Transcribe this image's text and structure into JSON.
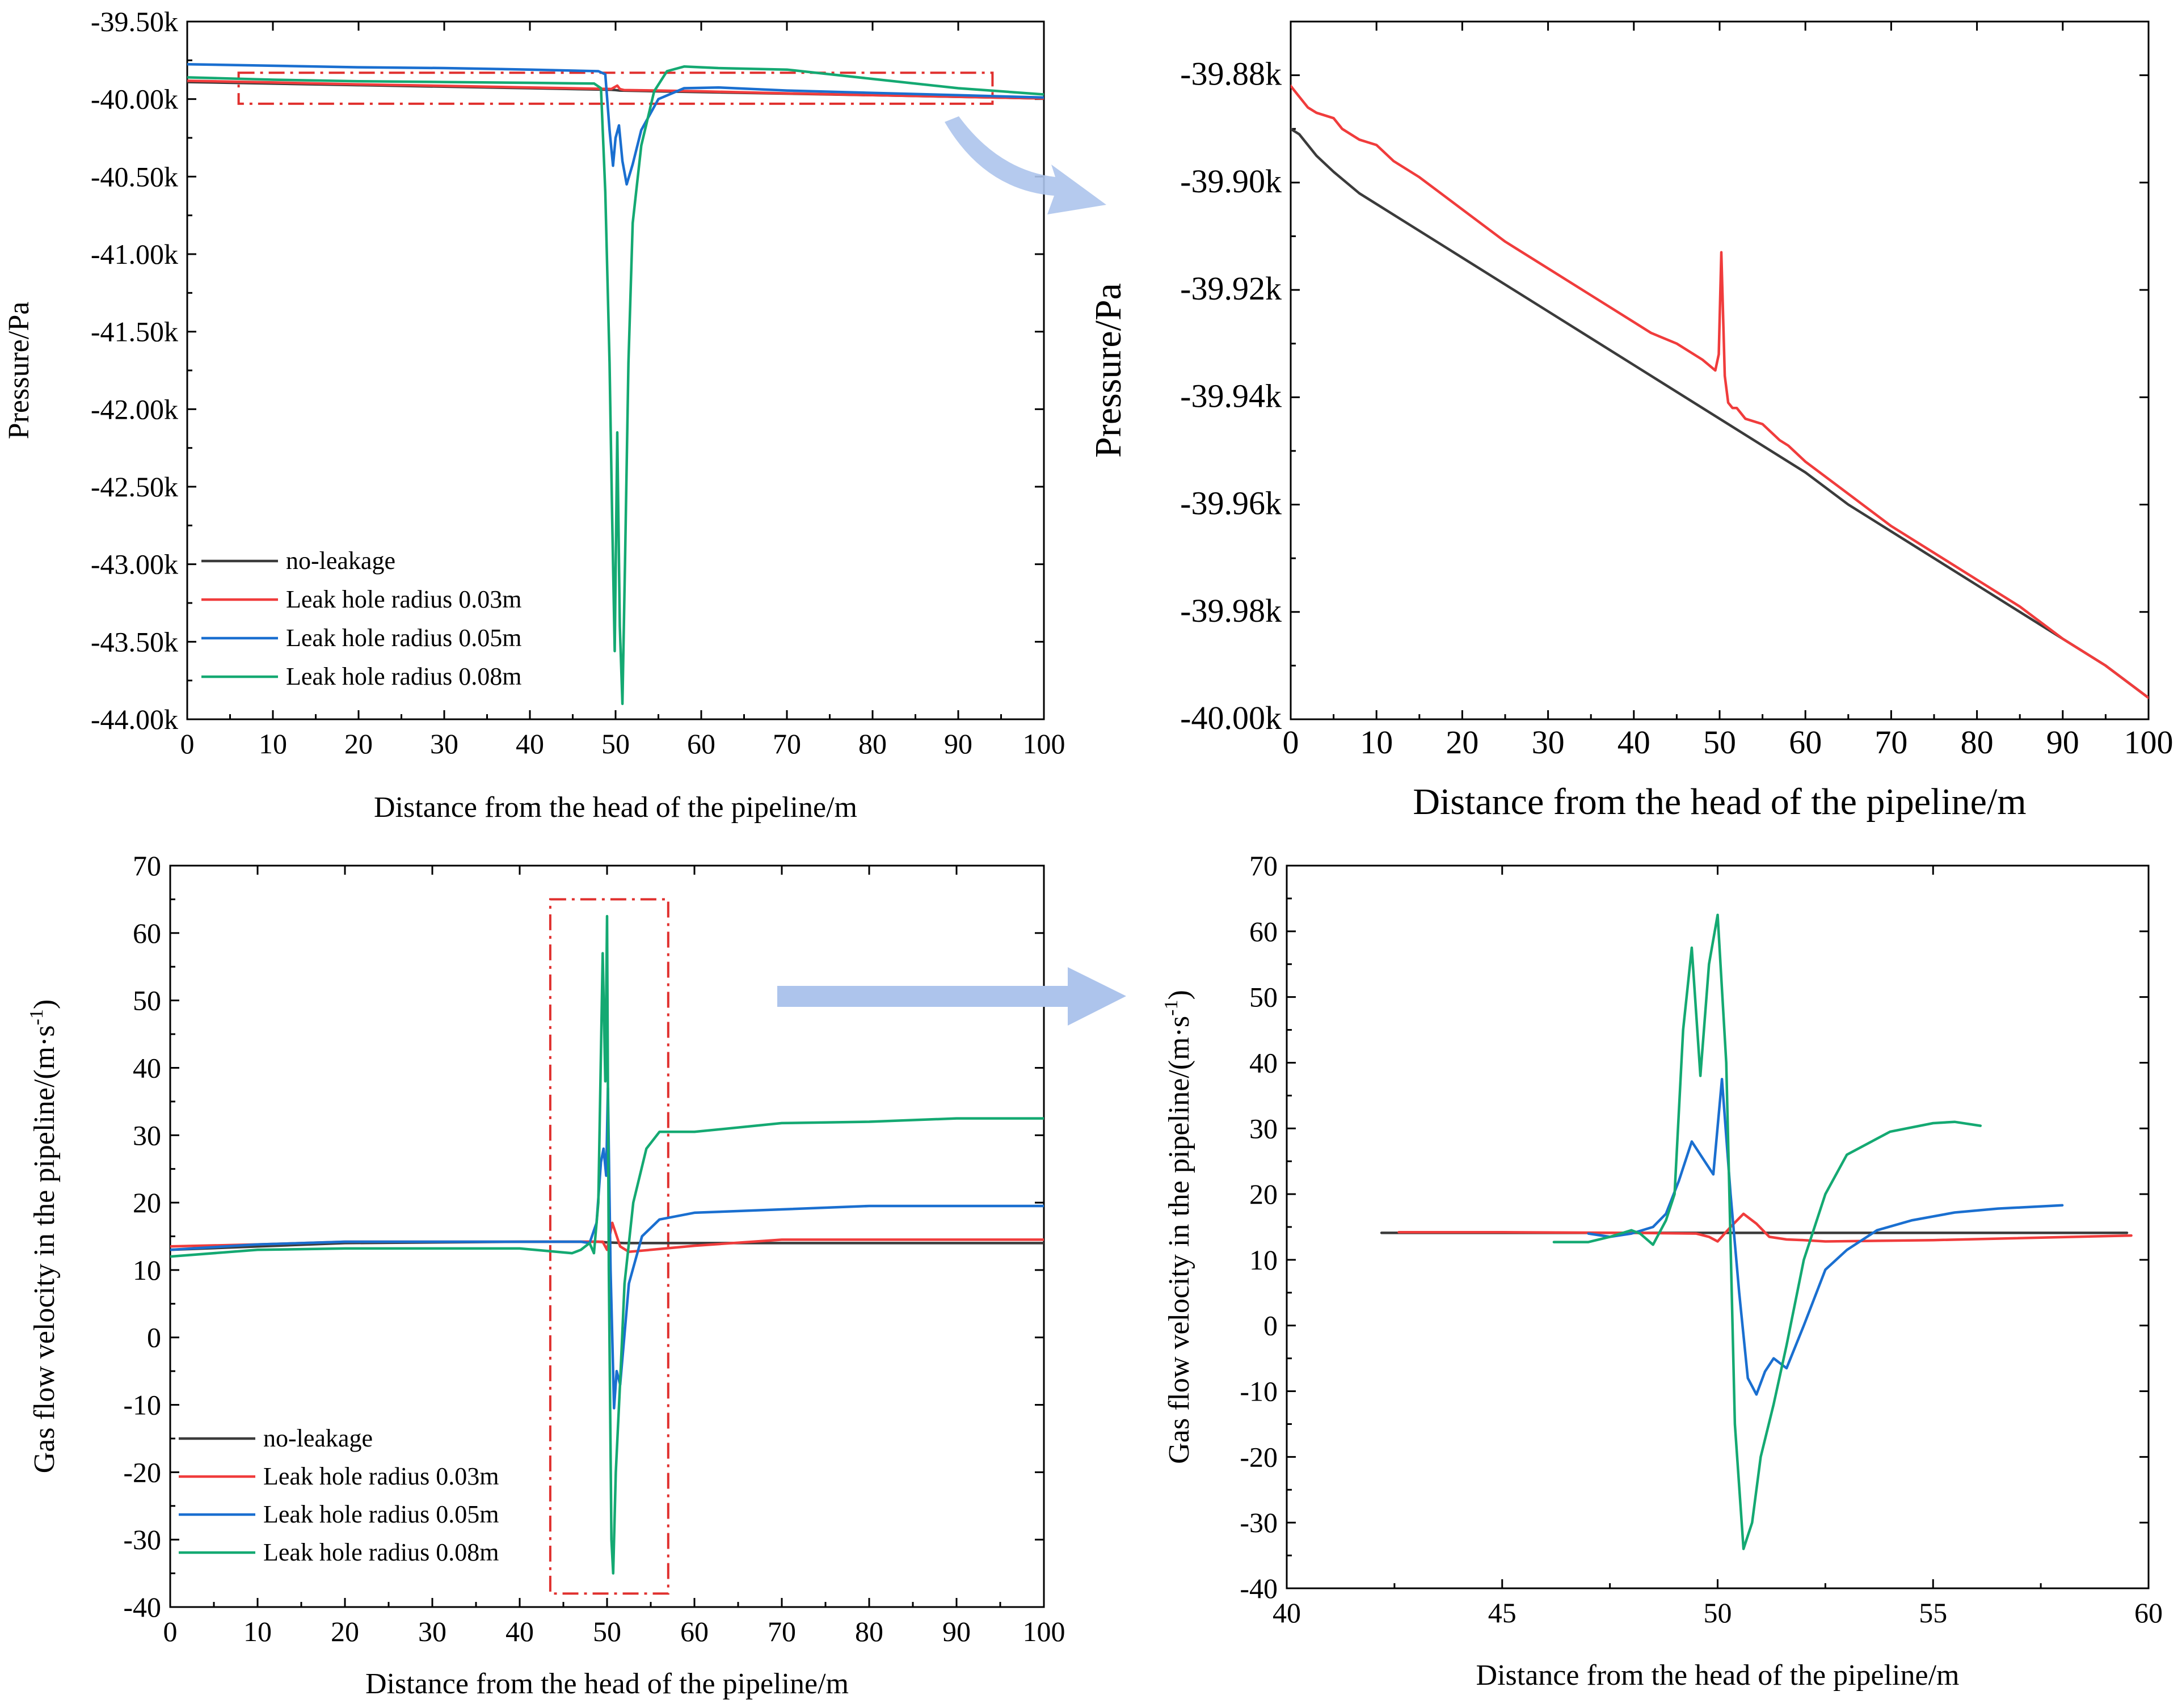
{
  "figure": {
    "colors": {
      "no_leakage": "#3b3b3b",
      "r003": "#f03c3c",
      "r005": "#1a6fd0",
      "r008": "#14a972",
      "highlight_box": "#e0302e",
      "arrow": "#adc4ec"
    }
  },
  "chart_data": [
    {
      "id": "top-left",
      "type": "line",
      "title": "",
      "xlabel": "Distance from the head of the pipeline/m",
      "ylabel": "Pressure/Pa",
      "xlim": [
        0,
        100
      ],
      "ylim": [
        -44000,
        -39500
      ],
      "xticks": [
        0,
        10,
        20,
        30,
        40,
        50,
        60,
        70,
        80,
        90,
        100
      ],
      "xtick_labels": [
        "0",
        "10",
        "20",
        "30",
        "40",
        "50",
        "60",
        "70",
        "80",
        "90",
        "100"
      ],
      "yticks": [
        -44000,
        -43500,
        -43000,
        -42500,
        -42000,
        -41500,
        -41000,
        -40500,
        -40000,
        -39500
      ],
      "ytick_labels": [
        "-44.00k",
        "-43.50k",
        "-43.00k",
        "-42.50k",
        "-42.00k",
        "-41.50k",
        "-41.00k",
        "-40.50k",
        "-40.00k",
        "-39.50k"
      ],
      "legend_position": "bottom-left",
      "highlight_box": {
        "x": [
          6,
          94
        ],
        "y": [
          -40030,
          -39830
        ]
      },
      "series": [
        {
          "key": "no_leakage",
          "name": "no-leakage",
          "x": [
            0,
            20,
            40,
            49.5,
            50,
            50.5,
            60,
            80,
            100
          ],
          "y": [
            -39890,
            -39910,
            -39930,
            -39940,
            -39942,
            -39945,
            -39955,
            -39975,
            -39996
          ]
        },
        {
          "key": "r003",
          "name": "Leak hole radius 0.03m",
          "x": [
            0,
            10,
            20,
            30,
            40,
            49.5,
            50.2,
            50.5,
            51,
            55,
            60,
            70,
            80,
            90,
            100
          ],
          "y": [
            -39882,
            -39893,
            -39905,
            -39915,
            -39925,
            -39935,
            -39913,
            -39935,
            -39942,
            -39945,
            -39950,
            -39963,
            -39975,
            -39985,
            -39996
          ]
        },
        {
          "key": "r005",
          "name": "Leak hole radius 0.05m",
          "x": [
            0,
            10,
            20,
            30,
            40,
            48,
            48.8,
            49.3,
            49.7,
            50,
            50.4,
            50.8,
            51.3,
            52,
            53,
            55,
            58,
            62,
            70,
            80,
            90,
            100
          ],
          "y": [
            -39775,
            -39785,
            -39795,
            -39800,
            -39810,
            -39820,
            -39840,
            -40200,
            -40430,
            -40250,
            -40170,
            -40400,
            -40550,
            -40420,
            -40200,
            -40000,
            -39930,
            -39925,
            -39945,
            -39960,
            -39975,
            -39990
          ]
        },
        {
          "key": "r008",
          "name": "Leak hole radius 0.08m",
          "x": [
            0,
            10,
            20,
            30,
            40,
            47.5,
            48.3,
            48.8,
            49.3,
            49.6,
            49.9,
            50.2,
            50.5,
            50.8,
            51.1,
            51.5,
            52,
            53,
            54.5,
            56,
            58,
            62,
            70,
            80,
            90,
            100
          ],
          "y": [
            -39860,
            -39875,
            -39885,
            -39890,
            -39895,
            -39900,
            -39930,
            -40600,
            -41700,
            -42700,
            -43560,
            -42150,
            -43400,
            -43900,
            -43000,
            -41700,
            -40800,
            -40300,
            -39950,
            -39820,
            -39790,
            -39800,
            -39810,
            -39870,
            -39930,
            -39970
          ]
        }
      ]
    },
    {
      "id": "top-right",
      "type": "line",
      "title": "",
      "xlabel": "Distance from the head of the pipeline/m",
      "ylabel": "Pressure/Pa",
      "xlim": [
        0,
        100
      ],
      "ylim": [
        -40000,
        -39870
      ],
      "xticks": [
        0,
        10,
        20,
        30,
        40,
        50,
        60,
        70,
        80,
        90,
        100
      ],
      "xtick_labels": [
        "0",
        "10",
        "20",
        "30",
        "40",
        "50",
        "60",
        "70",
        "80",
        "90",
        "100"
      ],
      "yticks": [
        -40000,
        -39980,
        -39960,
        -39940,
        -39920,
        -39900,
        -39880
      ],
      "ytick_labels": [
        "-40.00k",
        "-39.98k",
        "-39.96k",
        "-39.94k",
        "-39.92k",
        "-39.90k",
        "-39.88k"
      ],
      "series": [
        {
          "key": "no_leakage",
          "x": [
            0,
            1,
            3,
            5,
            8,
            10,
            20,
            30,
            40,
            50,
            60,
            65,
            70,
            80,
            90,
            95,
            100
          ],
          "y": [
            -39890,
            -39891,
            -39895,
            -39898,
            -39902,
            -39904,
            -39914,
            -39924,
            -39934,
            -39944,
            -39954,
            -39960,
            -39965,
            -39975,
            -39985,
            -39990,
            -39996
          ]
        },
        {
          "key": "r003",
          "x": [
            0,
            1,
            2,
            3,
            5,
            6,
            8,
            10,
            12,
            15,
            20,
            25,
            30,
            35,
            40,
            42,
            45,
            48,
            49.5,
            49.9,
            50.2,
            50.6,
            51,
            51.5,
            52,
            53,
            55,
            57,
            58,
            60,
            65,
            70,
            75,
            80,
            85,
            90,
            95,
            100
          ],
          "y": [
            -39882,
            -39884,
            -39886,
            -39887,
            -39888,
            -39890,
            -39892,
            -39893,
            -39896,
            -39899,
            -39905,
            -39911,
            -39916,
            -39921,
            -39926,
            -39928,
            -39930,
            -39933,
            -39935,
            -39932,
            -39913,
            -39936,
            -39941,
            -39942,
            -39942,
            -39944,
            -39945,
            -39948,
            -39949,
            -39952,
            -39958,
            -39964,
            -39969,
            -39974,
            -39979,
            -39985,
            -39990,
            -39996
          ]
        }
      ]
    },
    {
      "id": "bottom-left",
      "type": "line",
      "title": "",
      "xlabel": "Distance from the head of the pipeline/m",
      "ylabel": "Gas flow velocity in the pipeline/(m·s",
      "ylabel_superscript": "-1",
      "ylabel_suffix": ")",
      "xlim": [
        0,
        100
      ],
      "ylim": [
        -40,
        70
      ],
      "xticks": [
        0,
        10,
        20,
        30,
        40,
        50,
        60,
        70,
        80,
        90,
        100
      ],
      "xtick_labels": [
        "0",
        "10",
        "20",
        "30",
        "40",
        "50",
        "60",
        "70",
        "80",
        "90",
        "100"
      ],
      "yticks": [
        -40,
        -30,
        -20,
        -10,
        0,
        10,
        20,
        30,
        40,
        50,
        60,
        70
      ],
      "ytick_labels": [
        "-40",
        "-30",
        "-20",
        "-10",
        "0",
        "10",
        "20",
        "30",
        "40",
        "50",
        "60",
        "70"
      ],
      "legend_position": "bottom-left",
      "highlight_box": {
        "x": [
          43.5,
          57
        ],
        "y": [
          -38,
          65
        ]
      },
      "series": [
        {
          "key": "no_leakage",
          "name": "no-leakage",
          "x": [
            0,
            20,
            40,
            49,
            50,
            52,
            60,
            100
          ],
          "y": [
            13,
            14,
            14.2,
            14.2,
            14.1,
            14,
            14,
            14
          ]
        },
        {
          "key": "r003",
          "name": "Leak hole radius 0.03m",
          "x": [
            0,
            10,
            20,
            40,
            49.5,
            50,
            50.6,
            51.5,
            52.5,
            55,
            60,
            70,
            80,
            100
          ],
          "y": [
            13.5,
            13.8,
            14.2,
            14.2,
            14.2,
            13,
            17,
            13.5,
            12.7,
            13,
            13.6,
            14.5,
            14.5,
            14.5
          ]
        },
        {
          "key": "r005",
          "name": "Leak hole radius 0.05m",
          "x": [
            0,
            10,
            20,
            40,
            47,
            48,
            48.8,
            49.3,
            49.6,
            49.9,
            50.1,
            50.4,
            50.8,
            51.1,
            51.5,
            52.5,
            54,
            56,
            60,
            70,
            80,
            90,
            100
          ],
          "y": [
            13,
            13.8,
            14.2,
            14.2,
            14.2,
            14,
            17,
            26,
            28,
            24,
            37,
            10,
            -10.5,
            -5,
            -7,
            8,
            15,
            17.5,
            18.5,
            19,
            19.5,
            19.5,
            19.5
          ]
        },
        {
          "key": "r008",
          "name": "Leak hole radius 0.08m",
          "x": [
            0,
            10,
            20,
            30,
            40,
            46,
            47,
            48,
            48.5,
            49,
            49.5,
            49.8,
            50,
            50.2,
            50.5,
            50.7,
            51,
            51.5,
            52,
            53,
            54.5,
            56,
            60,
            70,
            80,
            90,
            100
          ],
          "y": [
            12,
            13,
            13.2,
            13.2,
            13.2,
            12.5,
            13,
            14,
            12.5,
            20,
            57,
            38,
            62.5,
            10,
            -30,
            -35,
            -20,
            -6.5,
            8,
            20,
            28,
            30.5,
            30.5,
            31.8,
            32,
            32.5,
            32.5
          ]
        }
      ]
    },
    {
      "id": "bottom-right",
      "type": "line",
      "title": "",
      "xlabel": "Distance from the head of the pipeline/m",
      "ylabel": "Gas flow velocity in the pipeline/(m·s",
      "ylabel_superscript": "-1",
      "ylabel_suffix": ")",
      "xlim": [
        40,
        60
      ],
      "ylim": [
        -40,
        70
      ],
      "xticks": [
        40,
        45,
        50,
        55,
        60
      ],
      "xtick_labels": [
        "40",
        "45",
        "50",
        "55",
        "60"
      ],
      "yticks": [
        -40,
        -30,
        -20,
        -10,
        0,
        10,
        20,
        30,
        40,
        50,
        60,
        70
      ],
      "ytick_labels": [
        "-40",
        "-30",
        "-20",
        "-10",
        "0",
        "10",
        "20",
        "30",
        "40",
        "50",
        "60",
        "70"
      ],
      "series": [
        {
          "key": "no_leakage",
          "x": [
            42.2,
            45,
            48,
            50,
            52,
            55,
            59.5
          ],
          "y": [
            14.1,
            14.1,
            14.1,
            14.1,
            14.1,
            14.1,
            14.1
          ]
        },
        {
          "key": "r003",
          "x": [
            42.6,
            45,
            48,
            49.5,
            49.8,
            50,
            50.3,
            50.6,
            50.9,
            51.2,
            51.6,
            52,
            52.5,
            55,
            59.6
          ],
          "y": [
            14.2,
            14.2,
            14.1,
            14,
            13.5,
            12.8,
            15,
            17,
            15.5,
            13.5,
            13.1,
            13,
            12.8,
            13,
            13.7
          ]
        },
        {
          "key": "r005",
          "x": [
            47,
            47.5,
            48,
            48.5,
            48.8,
            49.1,
            49.4,
            49.7,
            49.9,
            50.1,
            50.3,
            50.5,
            50.7,
            50.9,
            51.1,
            51.3,
            51.6,
            52,
            52.5,
            53,
            53.7,
            54.5,
            55.5,
            56.5,
            58
          ],
          "y": [
            14,
            13.5,
            14,
            15,
            17,
            22,
            28,
            25,
            23,
            37.5,
            20,
            5,
            -8,
            -10.5,
            -7,
            -5,
            -6.5,
            0,
            8.5,
            11.5,
            14.5,
            16,
            17.2,
            17.8,
            18.3
          ]
        },
        {
          "key": "r008",
          "x": [
            46.2,
            47,
            47.5,
            48,
            48.2,
            48.5,
            48.8,
            49,
            49.2,
            49.4,
            49.6,
            49.8,
            50,
            50.2,
            50.4,
            50.6,
            50.8,
            51,
            51.3,
            51.6,
            52,
            52.5,
            53,
            54,
            55,
            55.5,
            56.1
          ],
          "y": [
            12.7,
            12.7,
            13.5,
            14.5,
            14,
            12.3,
            16,
            20,
            45,
            57.5,
            38,
            55,
            62.5,
            40,
            -15,
            -34,
            -30,
            -20,
            -12,
            -3,
            10,
            20,
            26,
            29.5,
            30.8,
            31,
            30.4
          ]
        }
      ]
    }
  ]
}
